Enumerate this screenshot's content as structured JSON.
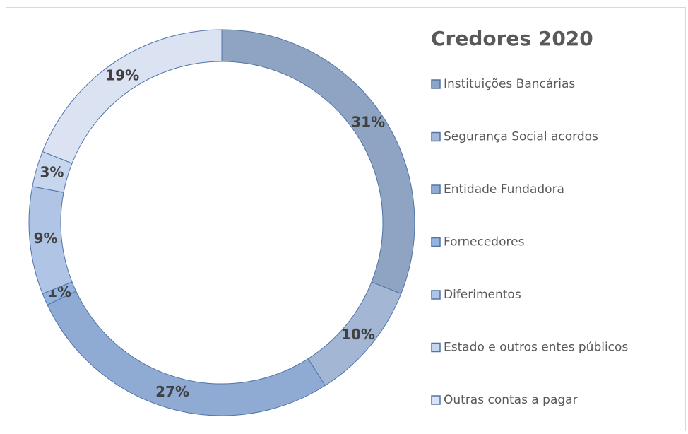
{
  "chart_data": {
    "type": "donut",
    "title": "Credores 2020",
    "categories": [
      "Instituições Bancárias",
      "Segurança Social acordos",
      "Entidade Fundadora",
      "Fornecedores",
      "Diferimentos",
      "Estado e outros entes públicos",
      "Outras contas a pagar"
    ],
    "values": [
      31,
      10,
      27,
      1,
      9,
      3,
      19
    ],
    "value_labels": [
      "31%",
      "10%",
      "27%",
      "1%",
      "9%",
      "3%",
      "19%"
    ],
    "colors": [
      "#8fa3c2",
      "#a3b6d3",
      "#8faad3",
      "#94b3de",
      "#b0c5e5",
      "#c6d6ee",
      "#dbe3f2"
    ],
    "legend": "right"
  }
}
